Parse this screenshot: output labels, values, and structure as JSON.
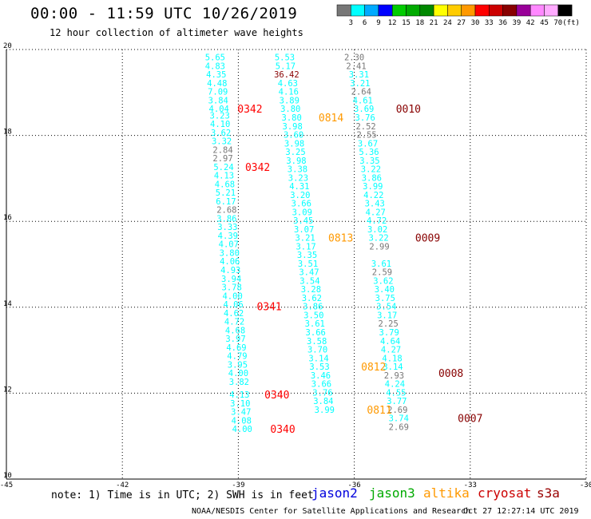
{
  "title": "00:00 - 11:59 UTC 10/26/2019",
  "subtitle": "12 hour collection of altimeter wave heights",
  "note": "note: 1) Time is in UTC; 2) SWH is in feet",
  "credit": "NOAA/NESDIS Center for Satellite Applications and Research",
  "timestamp": "Oct 27 12:27:14 UTC 2019",
  "satellites": [
    {
      "name": "jason2",
      "color": "#0000dd"
    },
    {
      "name": "jason3",
      "color": "#00aa00"
    },
    {
      "name": "altika",
      "color": "#ff9900"
    },
    {
      "name": "cryosat",
      "color": "#cc0000"
    },
    {
      "name": "s3a",
      "color": "#990000"
    }
  ],
  "colorbar": {
    "colors": [
      "#777777",
      "#00ffff",
      "#00aaff",
      "#0000ff",
      "#00cc00",
      "#00aa00",
      "#008800",
      "#ffff00",
      "#ffcc00",
      "#ff9900",
      "#ff0000",
      "#cc0000",
      "#880000",
      "#990099",
      "#ff88ff",
      "#ffaaff",
      "#000000"
    ],
    "labels": [
      "3",
      "6",
      "9",
      "12",
      "15",
      "18",
      "21",
      "24",
      "27",
      "30",
      "33",
      "36",
      "39",
      "42",
      "45",
      "70",
      "(ft)"
    ]
  },
  "chart_data": {
    "type": "scatter",
    "xlim": [
      -45,
      -30
    ],
    "ylim": [
      10,
      20
    ],
    "xticks": [
      "-45",
      "-42",
      "-39",
      "-36",
      "-33",
      "-30"
    ],
    "yticks": [
      "10",
      "12",
      "14",
      "16",
      "18",
      "20"
    ],
    "grid": true,
    "series": [
      {
        "color": "#00ffff",
        "points": [
          {
            "x": -39.6,
            "y": 19.82,
            "t": "5.65"
          },
          {
            "x": -39.6,
            "y": 19.62,
            "t": "4.83"
          },
          {
            "x": -39.57,
            "y": 19.42,
            "t": "4.35"
          },
          {
            "x": -39.55,
            "y": 19.22,
            "t": "4.48"
          },
          {
            "x": -39.53,
            "y": 19.02,
            "t": "7.09"
          },
          {
            "x": -39.52,
            "y": 18.82,
            "t": "3.84"
          },
          {
            "x": -39.5,
            "y": 18.62,
            "t": "4.04"
          },
          {
            "x": -39.48,
            "y": 18.47,
            "t": "3.23"
          },
          {
            "x": -39.47,
            "y": 18.27,
            "t": "4.10"
          },
          {
            "x": -39.45,
            "y": 18.07,
            "t": "3.62"
          },
          {
            "x": -39.43,
            "y": 17.87,
            "t": "3.32"
          },
          {
            "x": -39.38,
            "y": 17.27,
            "t": "5.24"
          },
          {
            "x": -39.37,
            "y": 17.07,
            "t": "4.13"
          },
          {
            "x": -39.35,
            "y": 16.87,
            "t": "4.68"
          },
          {
            "x": -39.33,
            "y": 16.67,
            "t": "5.21"
          },
          {
            "x": -39.32,
            "y": 16.47,
            "t": "6.17"
          },
          {
            "x": -39.3,
            "y": 16.07,
            "t": "3.86"
          },
          {
            "x": -39.28,
            "y": 15.87,
            "t": "3.33"
          },
          {
            "x": -39.27,
            "y": 15.67,
            "t": "4.39"
          },
          {
            "x": -39.25,
            "y": 15.47,
            "t": "4.07"
          },
          {
            "x": -39.23,
            "y": 15.27,
            "t": "3.80"
          },
          {
            "x": -39.22,
            "y": 15.07,
            "t": "4.06"
          },
          {
            "x": -39.2,
            "y": 14.87,
            "t": "4.93"
          },
          {
            "x": -39.18,
            "y": 14.67,
            "t": "3.94"
          },
          {
            "x": -39.17,
            "y": 14.47,
            "t": "3.78"
          },
          {
            "x": -39.15,
            "y": 14.27,
            "t": "4.00"
          },
          {
            "x": -39.13,
            "y": 14.07,
            "t": "4.06"
          },
          {
            "x": -39.12,
            "y": 13.87,
            "t": "4.62"
          },
          {
            "x": -39.1,
            "y": 13.67,
            "t": "4.72"
          },
          {
            "x": -39.08,
            "y": 13.47,
            "t": "4.68"
          },
          {
            "x": -39.07,
            "y": 13.27,
            "t": "3.97"
          },
          {
            "x": -39.05,
            "y": 13.07,
            "t": "4.69"
          },
          {
            "x": -39.03,
            "y": 12.87,
            "t": "4.79"
          },
          {
            "x": -39.02,
            "y": 12.67,
            "t": "3.95"
          },
          {
            "x": -39.0,
            "y": 12.47,
            "t": "4.00"
          },
          {
            "x": -38.98,
            "y": 12.27,
            "t": "3.82"
          },
          {
            "x": -38.97,
            "y": 11.97,
            "t": "4.13"
          },
          {
            "x": -38.95,
            "y": 11.77,
            "t": "3.10"
          },
          {
            "x": -38.93,
            "y": 11.57,
            "t": "3.47"
          },
          {
            "x": -38.92,
            "y": 11.37,
            "t": "4.08"
          },
          {
            "x": -38.9,
            "y": 11.17,
            "t": "4.00"
          },
          {
            "x": -37.8,
            "y": 19.82,
            "t": "5.53"
          },
          {
            "x": -37.78,
            "y": 19.62,
            "t": "5.17"
          },
          {
            "x": -37.72,
            "y": 19.22,
            "t": "4.63"
          },
          {
            "x": -37.7,
            "y": 19.02,
            "t": "4.16"
          },
          {
            "x": -37.68,
            "y": 18.82,
            "t": "3.89"
          },
          {
            "x": -37.65,
            "y": 18.62,
            "t": "3.80"
          },
          {
            "x": -37.62,
            "y": 18.42,
            "t": "3.80"
          },
          {
            "x": -37.6,
            "y": 18.22,
            "t": "3.98"
          },
          {
            "x": -37.57,
            "y": 18.02,
            "t": "3.60"
          },
          {
            "x": -37.55,
            "y": 17.82,
            "t": "3.98"
          },
          {
            "x": -37.52,
            "y": 17.62,
            "t": "3.25"
          },
          {
            "x": -37.5,
            "y": 17.42,
            "t": "3.98"
          },
          {
            "x": -37.47,
            "y": 17.22,
            "t": "3.38"
          },
          {
            "x": -37.45,
            "y": 17.02,
            "t": "3.23"
          },
          {
            "x": -37.42,
            "y": 16.82,
            "t": "4.31"
          },
          {
            "x": -37.4,
            "y": 16.62,
            "t": "3.20"
          },
          {
            "x": -37.37,
            "y": 16.42,
            "t": "3.66"
          },
          {
            "x": -37.35,
            "y": 16.22,
            "t": "3.09"
          },
          {
            "x": -37.32,
            "y": 16.02,
            "t": "3.45"
          },
          {
            "x": -37.3,
            "y": 15.82,
            "t": "3.07"
          },
          {
            "x": -37.27,
            "y": 15.62,
            "t": "3.21"
          },
          {
            "x": -37.25,
            "y": 15.42,
            "t": "3.17"
          },
          {
            "x": -37.22,
            "y": 15.22,
            "t": "3.35"
          },
          {
            "x": -37.2,
            "y": 15.02,
            "t": "3.51"
          },
          {
            "x": -37.17,
            "y": 14.82,
            "t": "3.47"
          },
          {
            "x": -37.15,
            "y": 14.62,
            "t": "3.54"
          },
          {
            "x": -37.12,
            "y": 14.42,
            "t": "3.28"
          },
          {
            "x": -37.1,
            "y": 14.22,
            "t": "3.62"
          },
          {
            "x": -37.07,
            "y": 14.02,
            "t": "3.86"
          },
          {
            "x": -37.05,
            "y": 13.82,
            "t": "3.50"
          },
          {
            "x": -37.02,
            "y": 13.62,
            "t": "3.61"
          },
          {
            "x": -37.0,
            "y": 13.42,
            "t": "3.66"
          },
          {
            "x": -36.97,
            "y": 13.22,
            "t": "3.58"
          },
          {
            "x": -36.95,
            "y": 13.02,
            "t": "3.70"
          },
          {
            "x": -36.92,
            "y": 12.82,
            "t": "3.14"
          },
          {
            "x": -36.9,
            "y": 12.62,
            "t": "3.53"
          },
          {
            "x": -36.87,
            "y": 12.42,
            "t": "3.46"
          },
          {
            "x": -36.85,
            "y": 12.22,
            "t": "3.66"
          },
          {
            "x": -36.82,
            "y": 12.02,
            "t": "3.76"
          },
          {
            "x": -36.8,
            "y": 11.82,
            "t": "3.84"
          },
          {
            "x": -36.77,
            "y": 11.62,
            "t": "3.99"
          },
          {
            "x": -35.88,
            "y": 19.42,
            "t": "3.31"
          },
          {
            "x": -35.85,
            "y": 19.22,
            "t": "3.21"
          },
          {
            "x": -35.78,
            "y": 18.82,
            "t": "4.61"
          },
          {
            "x": -35.75,
            "y": 18.62,
            "t": "3.69"
          },
          {
            "x": -35.72,
            "y": 18.42,
            "t": "3.76"
          },
          {
            "x": -35.65,
            "y": 17.82,
            "t": "3.67"
          },
          {
            "x": -35.62,
            "y": 17.62,
            "t": "5.36"
          },
          {
            "x": -35.6,
            "y": 17.42,
            "t": "3.35"
          },
          {
            "x": -35.57,
            "y": 17.22,
            "t": "3.22"
          },
          {
            "x": -35.55,
            "y": 17.02,
            "t": "3.86"
          },
          {
            "x": -35.52,
            "y": 16.82,
            "t": "3.99"
          },
          {
            "x": -35.5,
            "y": 16.62,
            "t": "4.22"
          },
          {
            "x": -35.47,
            "y": 16.42,
            "t": "3.43"
          },
          {
            "x": -35.45,
            "y": 16.22,
            "t": "4.27"
          },
          {
            "x": -35.42,
            "y": 16.02,
            "t": "4.72"
          },
          {
            "x": -35.4,
            "y": 15.82,
            "t": "3.02"
          },
          {
            "x": -35.37,
            "y": 15.62,
            "t": "3.22"
          },
          {
            "x": -35.3,
            "y": 15.02,
            "t": "3.61"
          },
          {
            "x": -35.25,
            "y": 14.62,
            "t": "3.62"
          },
          {
            "x": -35.22,
            "y": 14.42,
            "t": "3.40"
          },
          {
            "x": -35.2,
            "y": 14.22,
            "t": "3.75"
          },
          {
            "x": -35.17,
            "y": 14.02,
            "t": "3.54"
          },
          {
            "x": -35.15,
            "y": 13.82,
            "t": "3.17"
          },
          {
            "x": -35.1,
            "y": 13.42,
            "t": "3.79"
          },
          {
            "x": -35.07,
            "y": 13.22,
            "t": "4.64"
          },
          {
            "x": -35.05,
            "y": 13.02,
            "t": "4.27"
          },
          {
            "x": -35.02,
            "y": 12.82,
            "t": "4.18"
          },
          {
            "x": -35.0,
            "y": 12.62,
            "t": "3.14"
          },
          {
            "x": -34.95,
            "y": 12.22,
            "t": "4.24"
          },
          {
            "x": -34.92,
            "y": 12.02,
            "t": "4.55"
          },
          {
            "x": -34.9,
            "y": 11.82,
            "t": "3.77"
          },
          {
            "x": -34.85,
            "y": 11.42,
            "t": "3.74"
          }
        ]
      },
      {
        "color": "#777777",
        "points": [
          {
            "x": -39.4,
            "y": 17.67,
            "t": "2.84"
          },
          {
            "x": -39.4,
            "y": 17.47,
            "t": "2.97"
          },
          {
            "x": -39.3,
            "y": 16.27,
            "t": "2.68"
          },
          {
            "x": -36.0,
            "y": 19.82,
            "t": "2.30"
          },
          {
            "x": -35.95,
            "y": 19.62,
            "t": "2.41"
          },
          {
            "x": -35.82,
            "y": 19.02,
            "t": "2.64"
          },
          {
            "x": -35.7,
            "y": 18.22,
            "t": "2.52"
          },
          {
            "x": -35.68,
            "y": 18.02,
            "t": "2.55"
          },
          {
            "x": -35.35,
            "y": 15.42,
            "t": "2.99"
          },
          {
            "x": -35.28,
            "y": 14.82,
            "t": "2.59"
          },
          {
            "x": -35.12,
            "y": 13.62,
            "t": "2.25"
          },
          {
            "x": -34.97,
            "y": 12.42,
            "t": "2.93"
          },
          {
            "x": -34.88,
            "y": 11.62,
            "t": "2.69"
          },
          {
            "x": -34.85,
            "y": 11.22,
            "t": "2.69"
          }
        ]
      },
      {
        "color": "#880000",
        "points": [
          {
            "x": -37.75,
            "y": 19.42,
            "t": "36.42"
          }
        ]
      }
    ],
    "annotations": [
      {
        "x": -38.7,
        "y": 18.62,
        "t": "0342",
        "color": "#ff0000"
      },
      {
        "x": -38.5,
        "y": 17.27,
        "t": "0342",
        "color": "#ff0000"
      },
      {
        "x": -38.2,
        "y": 14.02,
        "t": "0341",
        "color": "#ff0000"
      },
      {
        "x": -38.0,
        "y": 11.97,
        "t": "0340",
        "color": "#ff0000"
      },
      {
        "x": -37.85,
        "y": 11.17,
        "t": "0340",
        "color": "#ff0000"
      },
      {
        "x": -36.6,
        "y": 18.42,
        "t": "0814",
        "color": "#ff9900"
      },
      {
        "x": -36.35,
        "y": 15.62,
        "t": "0813",
        "color": "#ff9900"
      },
      {
        "x": -35.5,
        "y": 12.62,
        "t": "0812",
        "color": "#ff9900"
      },
      {
        "x": -35.35,
        "y": 11.62,
        "t": "0811",
        "color": "#ff9900"
      },
      {
        "x": -34.6,
        "y": 18.62,
        "t": "0010",
        "color": "#880000"
      },
      {
        "x": -34.1,
        "y": 15.62,
        "t": "0009",
        "color": "#880000"
      },
      {
        "x": -33.5,
        "y": 12.47,
        "t": "0008",
        "color": "#880000"
      },
      {
        "x": -33.0,
        "y": 11.42,
        "t": "0007",
        "color": "#880000"
      }
    ]
  }
}
